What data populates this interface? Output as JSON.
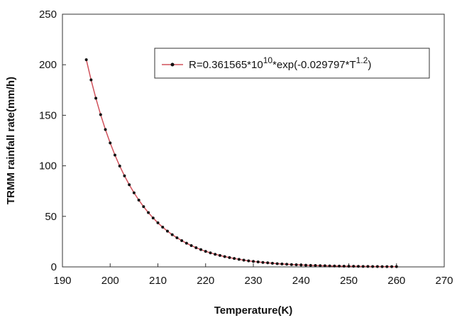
{
  "chart_data": {
    "type": "line",
    "x_label": "Temperature(K)",
    "y_label": "TRMM rainfall rate(mm/h)",
    "xlim": [
      190,
      270
    ],
    "ylim": [
      0,
      250
    ],
    "xticks": [
      190,
      200,
      210,
      220,
      230,
      240,
      250,
      260,
      270
    ],
    "yticks": [
      0,
      50,
      100,
      150,
      200,
      250
    ],
    "grid": false,
    "legend": "upper right",
    "x": [
      195,
      196,
      197,
      198,
      199,
      200,
      201,
      202,
      203,
      204,
      205,
      206,
      207,
      208,
      209,
      210,
      211,
      212,
      213,
      214,
      215,
      216,
      217,
      218,
      219,
      220,
      221,
      222,
      223,
      224,
      225,
      226,
      227,
      228,
      229,
      230,
      231,
      232,
      233,
      234,
      235,
      236,
      237,
      238,
      239,
      240,
      241,
      242,
      243,
      244,
      245,
      246,
      247,
      248,
      249,
      250,
      251,
      252,
      253,
      254,
      255,
      256,
      257,
      258,
      259,
      260
    ],
    "series": [
      {
        "name_parts": [
          "R=0.361565*10",
          "10",
          "*exp(-0.029797*T",
          "1.2",
          ")"
        ],
        "color": "#d0505a",
        "marker_color": "#111111",
        "values": [
          205.0,
          185.0,
          166.9,
          150.6,
          135.9,
          122.6,
          110.6,
          99.8,
          90.1,
          81.3,
          73.3,
          66.1,
          59.6,
          53.7,
          48.4,
          43.6,
          39.3,
          35.4,
          31.9,
          28.8,
          26.0,
          23.4,
          21.1,
          19.0,
          17.1,
          15.4,
          13.9,
          12.5,
          11.3,
          10.2,
          9.2,
          8.3,
          7.5,
          6.7,
          6.0,
          5.4,
          4.9,
          4.4,
          4.0,
          3.6,
          3.2,
          2.9,
          2.6,
          2.3,
          2.1,
          1.9,
          1.7,
          1.5,
          1.4,
          1.2,
          1.1,
          1.0,
          0.9,
          0.8,
          0.7,
          0.65,
          0.58,
          0.52,
          0.47,
          0.42,
          0.38,
          0.34,
          0.3,
          0.27,
          0.24,
          0.22
        ]
      }
    ]
  }
}
